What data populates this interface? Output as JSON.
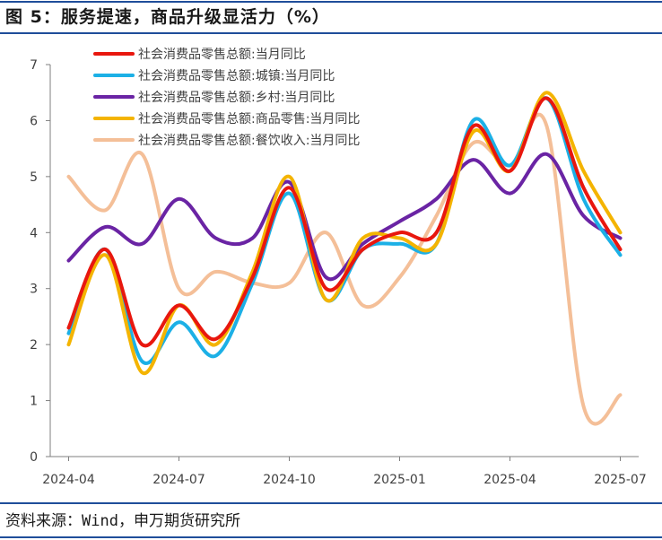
{
  "figure": {
    "title": "图 5：服务提速，商品升级显活力（%）",
    "source": "资料来源：Wind，申万期货研究所"
  },
  "colors": {
    "rule": "#1f4e9a",
    "axis": "#7f7f7f",
    "text": "#404040"
  },
  "chart_data": {
    "type": "line",
    "x": [
      "2024-04",
      "2024-05",
      "2024-06",
      "2024-07",
      "2024-08",
      "2024-09",
      "2024-10",
      "2024-11",
      "2024-12",
      "2025-01",
      "2025-02",
      "2025-03",
      "2025-04",
      "2025-05",
      "2025-06",
      "2025-07"
    ],
    "x_ticks": [
      "2024-04",
      "2024-07",
      "2024-10",
      "2025-01",
      "2025-04",
      "2025-07"
    ],
    "ylim": [
      0,
      7
    ],
    "y_ticks": [
      "0",
      "1",
      "2",
      "3",
      "4",
      "5",
      "6",
      "7"
    ],
    "grid": false,
    "legend_position": "top-left",
    "smooth": true,
    "series": [
      {
        "name": "社会消费品零售总额:当月同比",
        "color": "#e8170e",
        "values": [
          2.3,
          3.7,
          2.0,
          2.7,
          2.1,
          3.2,
          4.8,
          3.0,
          3.7,
          4.0,
          4.0,
          5.9,
          5.1,
          6.4,
          4.8,
          3.7
        ]
      },
      {
        "name": "社会消费品零售总额:城镇:当月同比",
        "color": "#1cb0e6",
        "values": [
          2.2,
          3.7,
          1.7,
          2.4,
          1.8,
          3.1,
          4.7,
          2.8,
          3.7,
          3.8,
          3.8,
          6.0,
          5.2,
          6.4,
          4.6,
          3.6
        ]
      },
      {
        "name": "社会消费品零售总额:乡村:当月同比",
        "color": "#6a24a4",
        "values": [
          3.5,
          4.1,
          3.8,
          4.6,
          3.9,
          3.9,
          4.9,
          3.2,
          3.8,
          4.2,
          4.6,
          5.3,
          4.7,
          5.4,
          4.3,
          3.9
        ]
      },
      {
        "name": "社会消费品零售总额:商品零售:当月同比",
        "color": "#f4b400",
        "values": [
          2.0,
          3.6,
          1.5,
          2.7,
          2.0,
          3.3,
          5.0,
          2.8,
          3.9,
          3.9,
          3.8,
          5.8,
          5.1,
          6.5,
          5.1,
          4.0
        ]
      },
      {
        "name": "社会消费品零售总额:餐饮收入:当月同比",
        "color": "#f4bf98",
        "values": [
          5.0,
          4.4,
          5.4,
          3.0,
          3.3,
          3.1,
          3.1,
          4.0,
          2.7,
          3.2,
          4.3,
          5.6,
          5.2,
          5.9,
          0.9,
          1.1
        ]
      }
    ]
  }
}
